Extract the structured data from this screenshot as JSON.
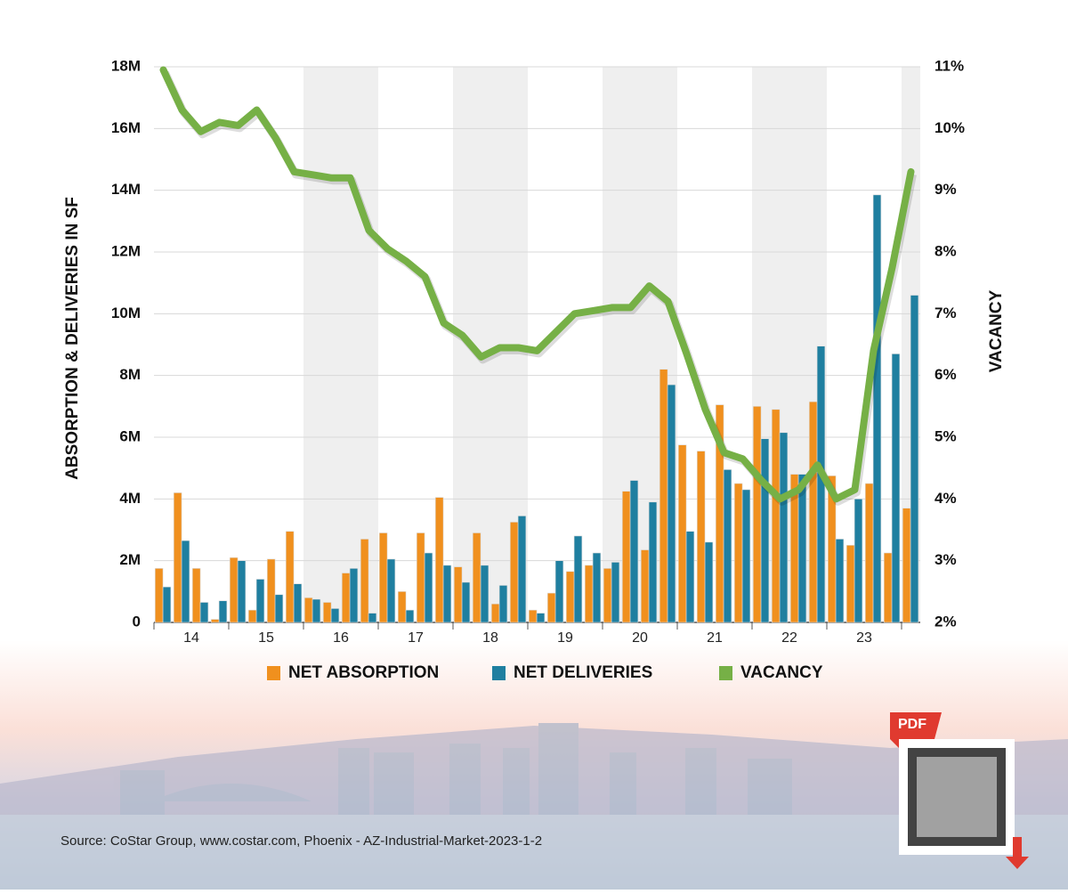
{
  "chart_data": {
    "type": "bar",
    "categories": [
      "14",
      null,
      null,
      null,
      "15",
      null,
      null,
      null,
      "16",
      null,
      null,
      null,
      "17",
      null,
      null,
      null,
      "18",
      null,
      null,
      null,
      "19",
      null,
      null,
      null,
      "20",
      null,
      null,
      null,
      "21",
      null,
      null,
      null,
      "22",
      null,
      null,
      null,
      "23",
      null,
      null,
      null,
      null
    ],
    "series": [
      {
        "name": "NET ABSORPTION",
        "color": "#f0901e",
        "type": "bar",
        "axis": "y",
        "values": [
          1750000,
          4200000,
          1750000,
          100000,
          2100000,
          400000,
          2050000,
          2950000,
          800000,
          650000,
          1600000,
          2700000,
          2900000,
          1000000,
          2900000,
          4050000,
          1800000,
          2900000,
          600000,
          3250000,
          400000,
          950000,
          1650000,
          1850000,
          1750000,
          4250000,
          2350000,
          8200000,
          5750000,
          5550000,
          7050000,
          4500000,
          7000000,
          6900000,
          4800000,
          7150000,
          4750000,
          2500000,
          4500000,
          2250000,
          3700000
        ]
      },
      {
        "name": "NET DELIVERIES",
        "color": "#1f7fa0",
        "type": "bar",
        "axis": "y",
        "values": [
          1150000,
          2650000,
          650000,
          700000,
          2000000,
          1400000,
          900000,
          1250000,
          750000,
          450000,
          1750000,
          300000,
          2050000,
          400000,
          2250000,
          1850000,
          1300000,
          1850000,
          1200000,
          3450000,
          300000,
          2000000,
          2800000,
          2250000,
          1950000,
          4600000,
          3900000,
          7700000,
          2950000,
          2600000,
          4950000,
          4300000,
          5950000,
          6150000,
          4800000,
          8950000,
          2700000,
          4000000,
          13850000,
          8700000,
          10600000
        ]
      },
      {
        "name": "VACANCY",
        "color": "#76b046",
        "type": "line",
        "axis": "y2",
        "values": [
          10.95,
          10.3,
          9.95,
          10.1,
          10.05,
          10.3,
          9.85,
          9.3,
          9.25,
          9.2,
          9.2,
          8.35,
          8.05,
          7.85,
          7.6,
          6.85,
          6.65,
          6.3,
          6.45,
          6.45,
          6.4,
          6.7,
          7.0,
          7.05,
          7.1,
          7.1,
          7.45,
          7.2,
          6.35,
          5.45,
          4.75,
          4.65,
          4.3,
          4.0,
          4.15,
          4.55,
          4.0,
          4.15,
          6.4,
          7.75,
          9.3
        ]
      }
    ],
    "ylabel": "ABSORPTION & DELIVERIES IN SF",
    "y2label": "VACANCY",
    "ylim": [
      0,
      18000000
    ],
    "yticks": [
      0,
      {
        "value": 2000000,
        "label": "2M"
      },
      {
        "value": 4000000,
        "label": "4M"
      },
      {
        "value": 6000000,
        "label": "6M"
      },
      {
        "value": 8000000,
        "label": "8M"
      },
      {
        "value": 10000000,
        "label": "10M"
      },
      {
        "value": 12000000,
        "label": "12M"
      },
      {
        "value": 14000000,
        "label": "14M"
      },
      {
        "value": 16000000,
        "label": "16M"
      },
      {
        "value": 18000000,
        "label": "18M"
      }
    ],
    "y2lim": [
      2,
      11
    ],
    "y2ticks": [
      {
        "value": 2,
        "label": "2%"
      },
      {
        "value": 3,
        "label": "3%"
      },
      {
        "value": 4,
        "label": "4%"
      },
      {
        "value": 5,
        "label": "5%"
      },
      {
        "value": 6,
        "label": "6%"
      },
      {
        "value": 7,
        "label": "7%"
      },
      {
        "value": 8,
        "label": "8%"
      },
      {
        "value": 9,
        "label": "9%"
      },
      {
        "value": 10,
        "label": "10%"
      },
      {
        "value": 11,
        "label": "11%"
      }
    ],
    "grid": true,
    "legend": "bottom"
  },
  "source": "Source: CoStar Group, www.costar.com, Phoenix - AZ-Industrial-Market-2023-1-2",
  "badge": "PDF"
}
